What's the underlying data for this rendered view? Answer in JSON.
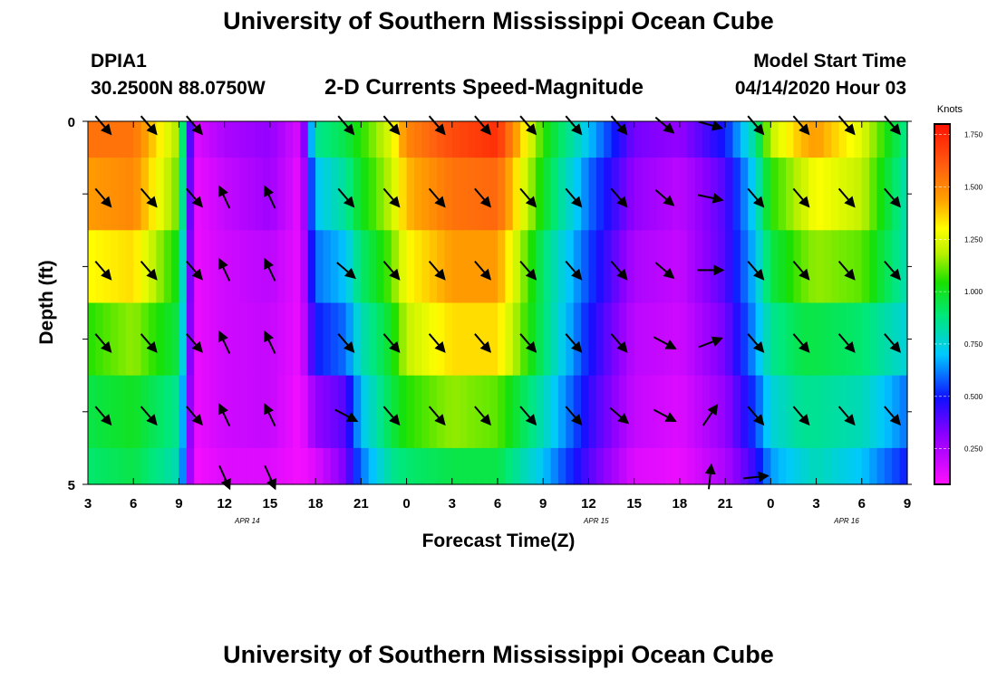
{
  "header": {
    "title": "University of Southern Mississippi Ocean Cube",
    "station_id": "DPIA1",
    "station_coords": "30.2500N 88.0750W",
    "subtitle": "2-D Currents Speed-Magnitude",
    "model_start_label": "Model Start Time",
    "model_start_value": "04/14/2020 Hour 03"
  },
  "footer": {
    "title": "University of Southern Mississippi Ocean Cube"
  },
  "chart_data": {
    "type": "heatmap",
    "title": "2-D Currents Speed-Magnitude",
    "xlabel": "Forecast Time(Z)",
    "ylabel": "Depth (ft)",
    "xlim": [
      3,
      57
    ],
    "ylim": [
      0,
      5
    ],
    "x_tick_labels": [
      "3",
      "6",
      "9",
      "12",
      "15",
      "18",
      "21",
      "0",
      "3",
      "6",
      "9",
      "12",
      "15",
      "18",
      "21",
      "0",
      "3",
      "6",
      "9"
    ],
    "y_tick_labels": [
      "0",
      "5"
    ],
    "date_labels": [
      {
        "label": "APR 14",
        "x": 13.5
      },
      {
        "label": "APR 15",
        "x": 36.5
      },
      {
        "label": "APR 16",
        "x": 53
      }
    ],
    "colorbar": {
      "label": "Knots",
      "min": 0.08,
      "max": 1.8,
      "ticks": [
        "1.750",
        "1.500",
        "1.250",
        "1.000",
        "0.750",
        "0.500",
        "0.250"
      ],
      "tick_values": [
        1.75,
        1.5,
        1.25,
        1.0,
        0.75,
        0.5,
        0.25
      ]
    },
    "speed_times": [
      3,
      6,
      9,
      10,
      12,
      15,
      17,
      18,
      20,
      21,
      23,
      24,
      27,
      30,
      33,
      36,
      39,
      42,
      45,
      47,
      48,
      50,
      51,
      54,
      57
    ],
    "speed_rows": [
      [
        1.55,
        1.55,
        1.15,
        0.15,
        0.25,
        0.3,
        0.15,
        0.85,
        0.95,
        1.05,
        1.25,
        1.5,
        1.65,
        1.72,
        1.05,
        0.7,
        0.35,
        0.3,
        0.5,
        0.85,
        1.2,
        1.4,
        1.45,
        1.25,
        0.85
      ],
      [
        1.45,
        1.5,
        1.1,
        0.12,
        0.2,
        0.28,
        0.12,
        0.7,
        0.85,
        1.0,
        1.2,
        1.4,
        1.55,
        1.58,
        1.0,
        0.6,
        0.3,
        0.22,
        0.4,
        0.75,
        1.05,
        1.2,
        1.3,
        1.2,
        0.8
      ],
      [
        1.3,
        1.35,
        1.0,
        0.12,
        0.18,
        0.22,
        0.12,
        0.6,
        0.7,
        0.9,
        1.1,
        1.3,
        1.45,
        1.45,
        0.9,
        0.55,
        0.25,
        0.2,
        0.4,
        0.7,
        0.95,
        1.1,
        1.15,
        1.1,
        0.8
      ],
      [
        1.05,
        1.15,
        0.95,
        0.12,
        0.18,
        0.2,
        0.12,
        0.5,
        0.6,
        0.8,
        1.0,
        1.2,
        1.35,
        1.35,
        0.9,
        0.5,
        0.22,
        0.18,
        0.35,
        0.65,
        0.85,
        0.95,
        0.95,
        0.9,
        0.75
      ],
      [
        0.95,
        1.0,
        0.85,
        0.12,
        0.18,
        0.2,
        0.1,
        0.3,
        0.4,
        0.7,
        0.95,
        1.05,
        1.15,
        1.1,
        0.8,
        0.45,
        0.2,
        0.15,
        0.3,
        0.55,
        0.75,
        0.85,
        0.85,
        0.8,
        0.6
      ],
      [
        0.9,
        0.95,
        0.8,
        0.1,
        0.15,
        0.15,
        0.1,
        0.15,
        0.35,
        0.6,
        0.85,
        0.9,
        0.95,
        0.95,
        0.7,
        0.4,
        0.15,
        0.12,
        0.25,
        0.45,
        0.65,
        0.75,
        0.8,
        0.7,
        0.5
      ]
    ],
    "vectors": {
      "times": [
        4,
        7,
        10,
        12,
        15,
        20,
        23,
        26,
        29,
        32,
        35,
        38,
        41,
        44,
        47,
        50,
        53,
        56
      ],
      "levels": [
        0.05,
        1.05,
        2.05,
        3.05,
        4.05,
        4.9
      ],
      "level_dirs": [
        [
          [
            0.6,
            0.7
          ],
          [
            0.6,
            0.7
          ],
          [
            0.6,
            0.7
          ],
          [
            0,
            0
          ],
          [
            0,
            0
          ],
          [
            0.6,
            0.7
          ],
          [
            0.6,
            0.7
          ],
          [
            0.6,
            0.7
          ],
          [
            0.6,
            0.7
          ],
          [
            0.6,
            0.7
          ],
          [
            0.6,
            0.7
          ],
          [
            0.6,
            0.7
          ],
          [
            0.7,
            0.6
          ],
          [
            0.9,
            0.25
          ],
          [
            0.6,
            0.7
          ],
          [
            0.6,
            0.7
          ],
          [
            0.6,
            0.7
          ],
          [
            0.6,
            0.7
          ]
        ],
        [
          [
            0.6,
            0.7
          ],
          [
            0.6,
            0.7
          ],
          [
            0.6,
            0.7
          ],
          [
            -0.4,
            -0.85
          ],
          [
            -0.4,
            -0.85
          ],
          [
            0.6,
            0.7
          ],
          [
            0.6,
            0.7
          ],
          [
            0.6,
            0.7
          ],
          [
            0.6,
            0.7
          ],
          [
            0.6,
            0.7
          ],
          [
            0.6,
            0.7
          ],
          [
            0.6,
            0.7
          ],
          [
            0.7,
            0.6
          ],
          [
            0.95,
            0.2
          ],
          [
            0.6,
            0.7
          ],
          [
            0.6,
            0.7
          ],
          [
            0.6,
            0.7
          ],
          [
            0.6,
            0.7
          ]
        ],
        [
          [
            0.6,
            0.7
          ],
          [
            0.6,
            0.7
          ],
          [
            0.6,
            0.7
          ],
          [
            -0.4,
            -0.85
          ],
          [
            -0.4,
            -0.85
          ],
          [
            0.7,
            0.6
          ],
          [
            0.6,
            0.7
          ],
          [
            0.6,
            0.7
          ],
          [
            0.6,
            0.7
          ],
          [
            0.6,
            0.7
          ],
          [
            0.6,
            0.7
          ],
          [
            0.6,
            0.7
          ],
          [
            0.7,
            0.6
          ],
          [
            1,
            0
          ],
          [
            0.6,
            0.7
          ],
          [
            0.6,
            0.7
          ],
          [
            0.6,
            0.7
          ],
          [
            0.6,
            0.7
          ]
        ],
        [
          [
            0.6,
            0.7
          ],
          [
            0.6,
            0.7
          ],
          [
            0.6,
            0.7
          ],
          [
            -0.4,
            -0.85
          ],
          [
            -0.4,
            -0.85
          ],
          [
            0.6,
            0.7
          ],
          [
            0.6,
            0.7
          ],
          [
            0.6,
            0.7
          ],
          [
            0.6,
            0.7
          ],
          [
            0.6,
            0.7
          ],
          [
            0.6,
            0.7
          ],
          [
            0.6,
            0.7
          ],
          [
            0.85,
            0.45
          ],
          [
            0.9,
            -0.35
          ],
          [
            0.6,
            0.7
          ],
          [
            0.6,
            0.7
          ],
          [
            0.6,
            0.7
          ],
          [
            0.6,
            0.7
          ]
        ],
        [
          [
            0.6,
            0.7
          ],
          [
            0.6,
            0.7
          ],
          [
            0.6,
            0.7
          ],
          [
            -0.4,
            -0.85
          ],
          [
            -0.4,
            -0.85
          ],
          [
            0.85,
            0.45
          ],
          [
            0.6,
            0.7
          ],
          [
            0.6,
            0.7
          ],
          [
            0.6,
            0.7
          ],
          [
            0.6,
            0.7
          ],
          [
            0.6,
            0.7
          ],
          [
            0.7,
            0.6
          ],
          [
            0.85,
            0.45
          ],
          [
            0.55,
            -0.8
          ],
          [
            0.6,
            0.7
          ],
          [
            0.6,
            0.7
          ],
          [
            0.6,
            0.7
          ],
          [
            0.6,
            0.7
          ]
        ],
        [
          [
            0,
            0
          ],
          [
            0,
            0
          ],
          [
            0,
            0
          ],
          [
            0.4,
            0.9
          ],
          [
            0.4,
            0.9
          ],
          [
            0,
            0
          ],
          [
            0,
            0
          ],
          [
            0,
            0
          ],
          [
            0,
            0
          ],
          [
            0,
            0
          ],
          [
            0,
            0
          ],
          [
            0,
            0
          ],
          [
            0,
            0
          ],
          [
            0.1,
            -0.95
          ],
          [
            0.95,
            -0.1
          ],
          [
            0,
            0
          ],
          [
            0,
            0
          ],
          [
            0,
            0
          ]
        ]
      ]
    }
  }
}
